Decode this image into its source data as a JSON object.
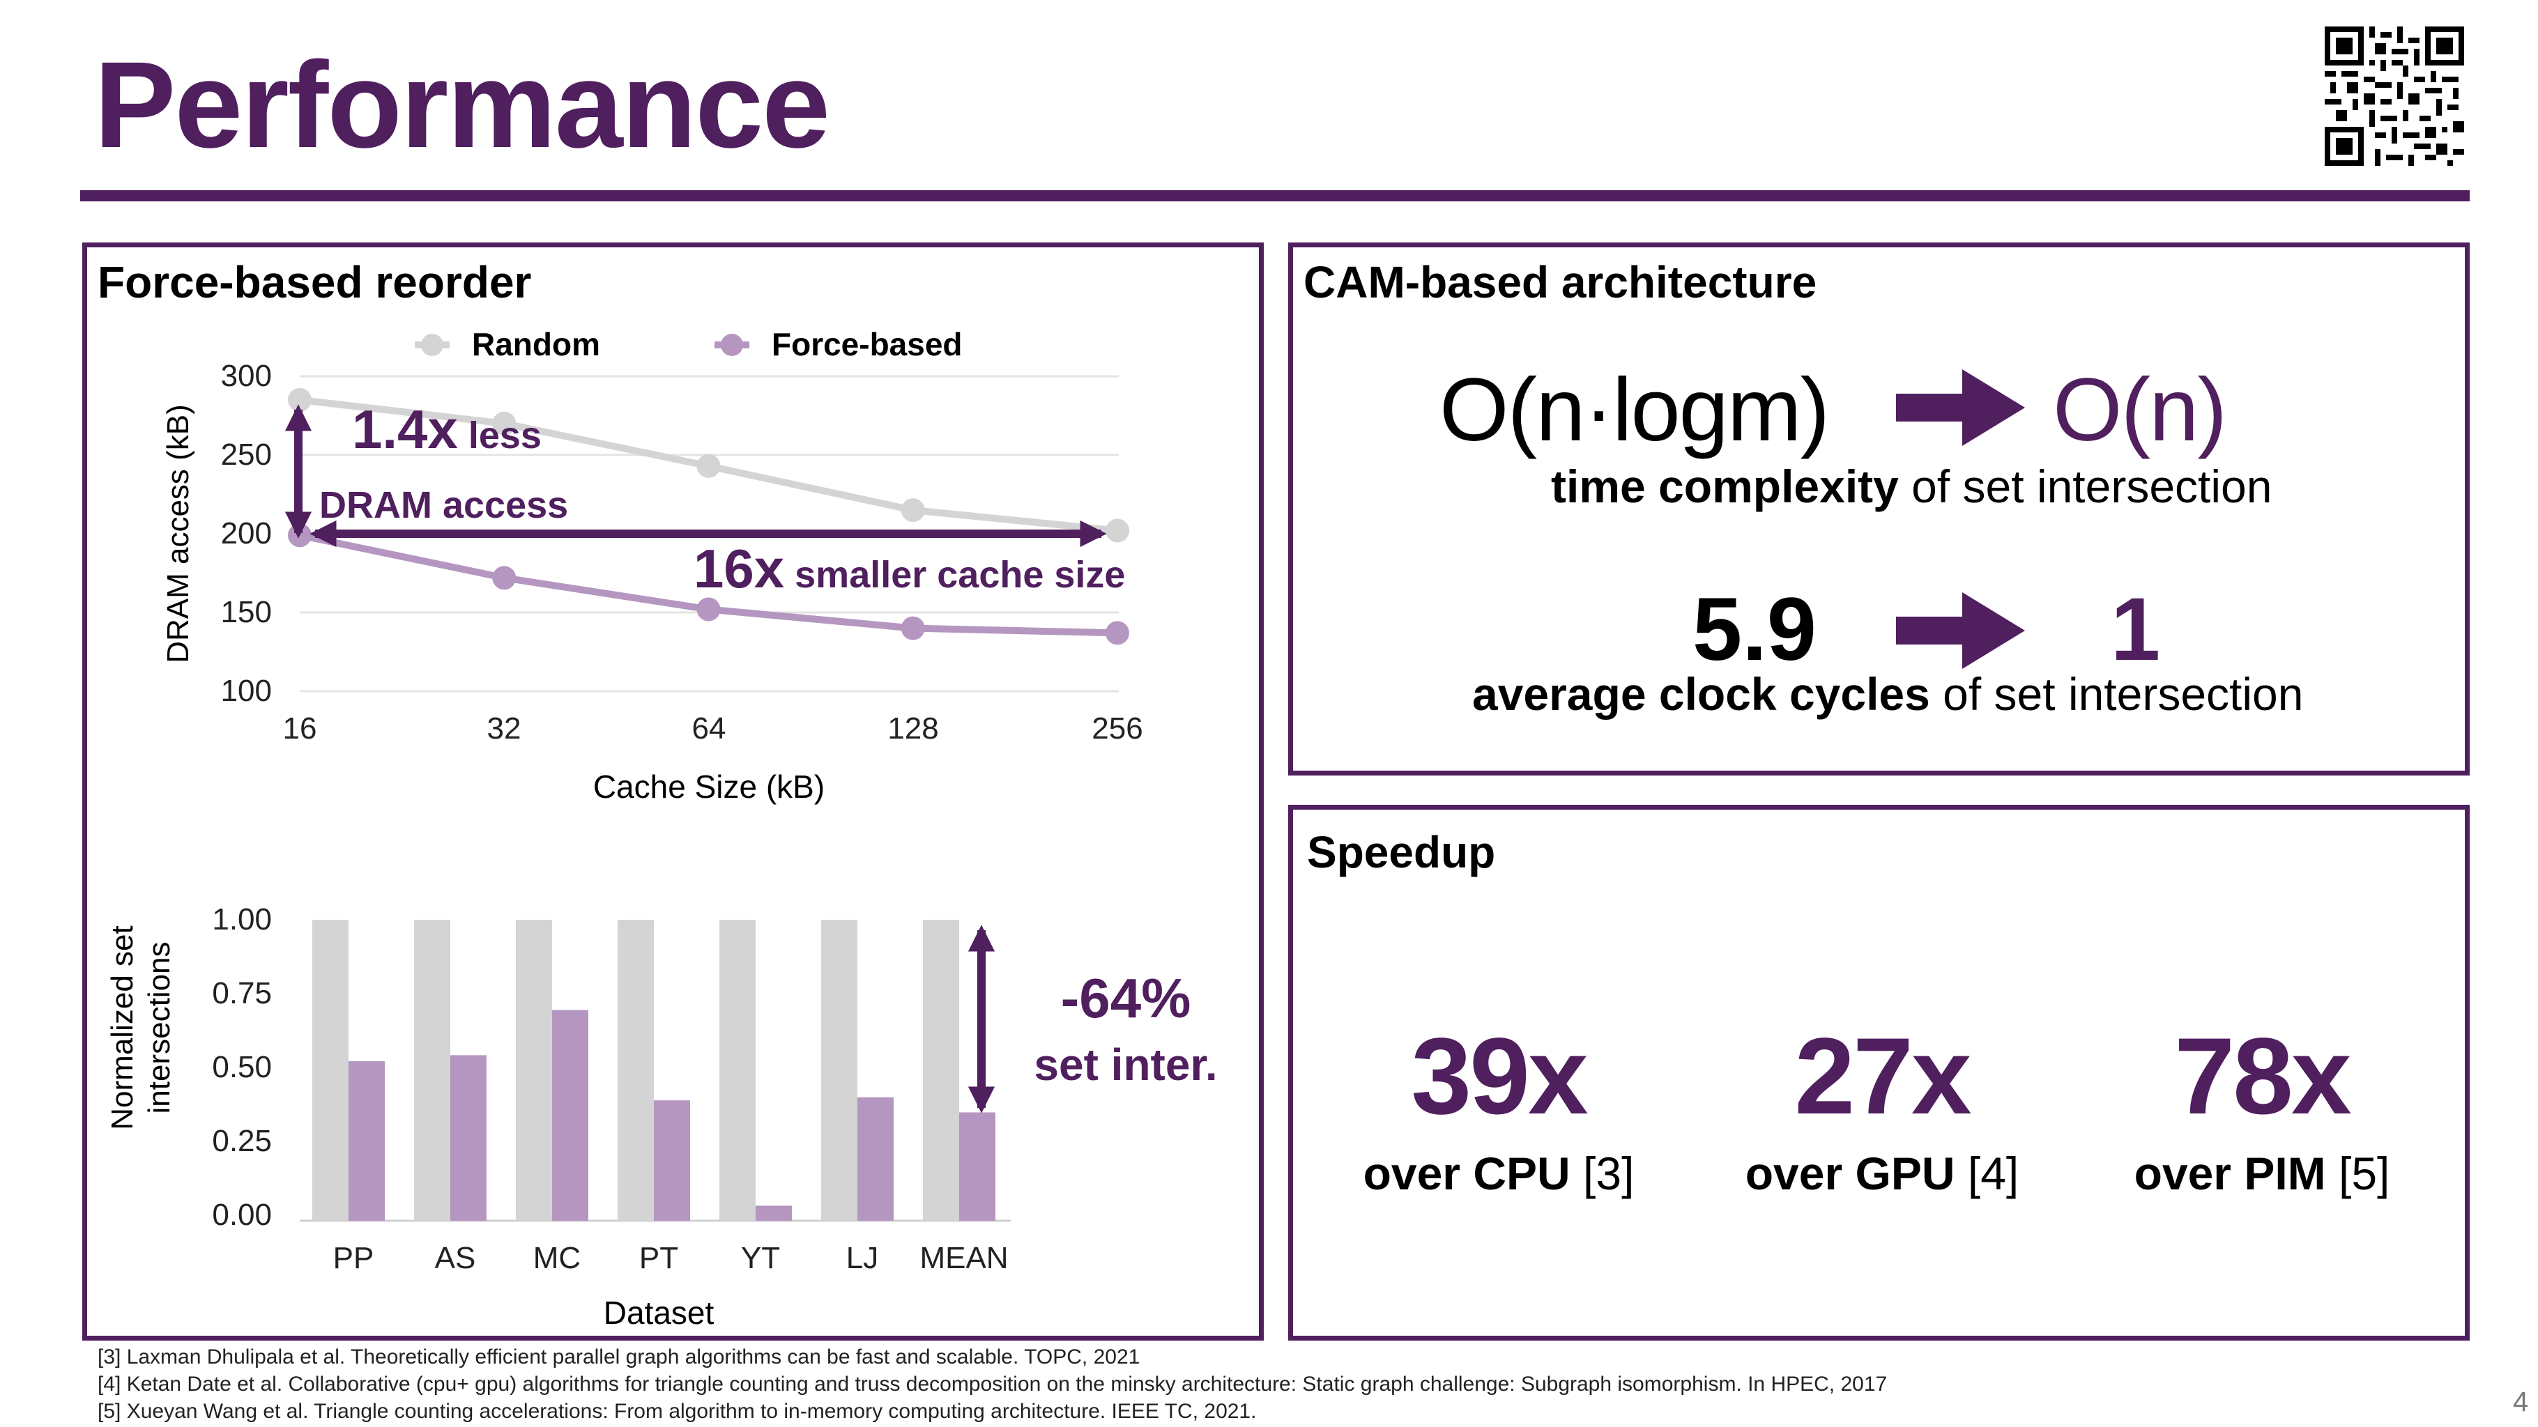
{
  "title": "Performance",
  "left_panel": {
    "title": "Force-based reorder"
  },
  "cam_panel": {
    "title": "CAM-based architecture",
    "complexity_from": "O(n·logm)",
    "complexity_to": "O(n)",
    "complexity_label_bold": "time complexity",
    "complexity_label_rest": " of set intersection",
    "cycles_from": "5.9",
    "cycles_to": "1",
    "cycles_label_bold": "average clock cycles",
    "cycles_label_rest": " of set intersection"
  },
  "speedup_panel": {
    "title": "Speedup",
    "items": [
      {
        "value": "39x",
        "label": "over CPU",
        "ref": "[3]"
      },
      {
        "value": "27x",
        "label": "over GPU",
        "ref": "[4]"
      },
      {
        "value": "78x",
        "label": "over PIM",
        "ref": "[5]"
      }
    ]
  },
  "chart_data": [
    {
      "type": "line",
      "xlabel": "Cache Size (kB)",
      "ylabel": "DRAM access (kB)",
      "x": [
        16,
        32,
        64,
        128,
        256
      ],
      "xticks": [
        "16",
        "32",
        "64",
        "128",
        "256"
      ],
      "yticks": [
        "300",
        "250",
        "200",
        "150",
        "100"
      ],
      "ylim": [
        100,
        300
      ],
      "grid": true,
      "legend_position": "top",
      "series": [
        {
          "name": "Random",
          "color": "#d4d4d4",
          "values": [
            285,
            270,
            243,
            215,
            202
          ]
        },
        {
          "name": "Force-based",
          "color": "#b596c0",
          "values": [
            199,
            172,
            152,
            140,
            137
          ]
        }
      ],
      "annotations": {
        "dram_value": "1.4x",
        "dram_text_1": " less",
        "dram_text_2": "DRAM access",
        "cache_value": "16x",
        "cache_text": " smaller cache size"
      }
    },
    {
      "type": "bar",
      "xlabel": "Dataset",
      "ylabel_lines": [
        "Normalized set",
        "intersections"
      ],
      "categories": [
        "PP",
        "AS",
        "MC",
        "PT",
        "YT",
        "LJ",
        "MEAN"
      ],
      "yticks": [
        "1.00",
        "0.75",
        "0.50",
        "0.25",
        "0.00"
      ],
      "ylim": [
        0,
        1
      ],
      "series": [
        {
          "color": "#d4d4d4",
          "values": [
            1.0,
            1.0,
            1.0,
            1.0,
            1.0,
            1.0,
            1.0
          ]
        },
        {
          "color": "#b596c0",
          "values": [
            0.53,
            0.55,
            0.7,
            0.4,
            0.05,
            0.41,
            0.36
          ]
        }
      ],
      "annotations": {
        "reduction": "-64%",
        "reduction_label": "set inter."
      }
    }
  ],
  "footnotes": [
    "[3] Laxman Dhulipala et al. Theoretically efficient parallel graph algorithms can be fast and scalable. TOPC, 2021",
    "[4] Ketan Date et al. Collaborative (cpu+ gpu) algorithms for triangle counting and truss decomposition on the minsky architecture: Static graph challenge: Subgraph isomorphism. In HPEC, 2017",
    "[5] Xueyan Wang et al. Triangle counting accelerations: From algorithm to in-memory computing architecture. IEEE TC, 2021."
  ],
  "page_number": "4",
  "colors": {
    "brand": "#4f1f5e",
    "random": "#d4d4d4",
    "force": "#b596c0"
  }
}
